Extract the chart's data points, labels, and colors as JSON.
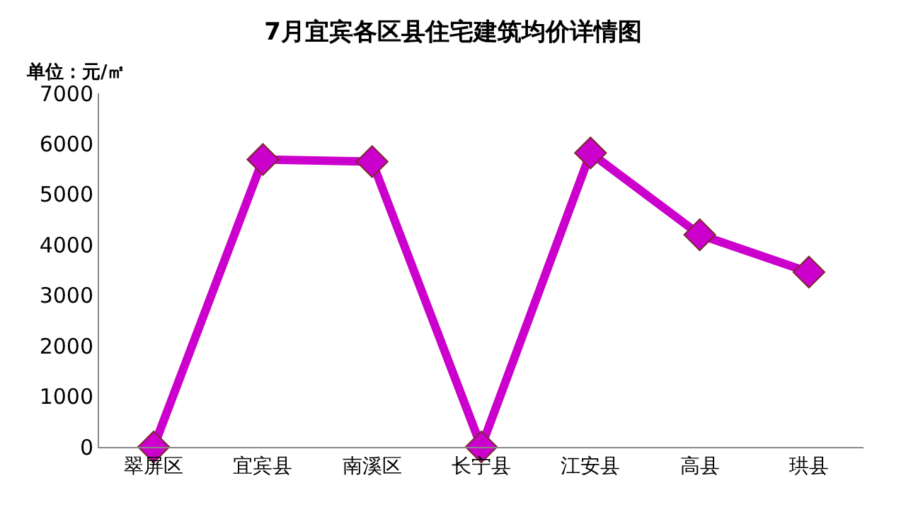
{
  "chart_data": {
    "type": "line",
    "title": "7月宜宾各区县住宅建筑均价详情图",
    "ylabel": "单位：元/㎡",
    "categories": [
      "翠屏区",
      "宜宾县",
      "南溪区",
      "长宁县",
      "江安县",
      "高县",
      "珙县"
    ],
    "series": [
      {
        "color": "#cc00cc",
        "values": [
          0,
          5690,
          5650,
          0,
          5820,
          4200,
          3460
        ]
      }
    ],
    "ylim": [
      0,
      7000
    ],
    "yticks": [
      0,
      1000,
      2000,
      3000,
      4000,
      5000,
      6000,
      7000
    ],
    "grid": false,
    "marker": "diamond",
    "line_style": "solid"
  }
}
